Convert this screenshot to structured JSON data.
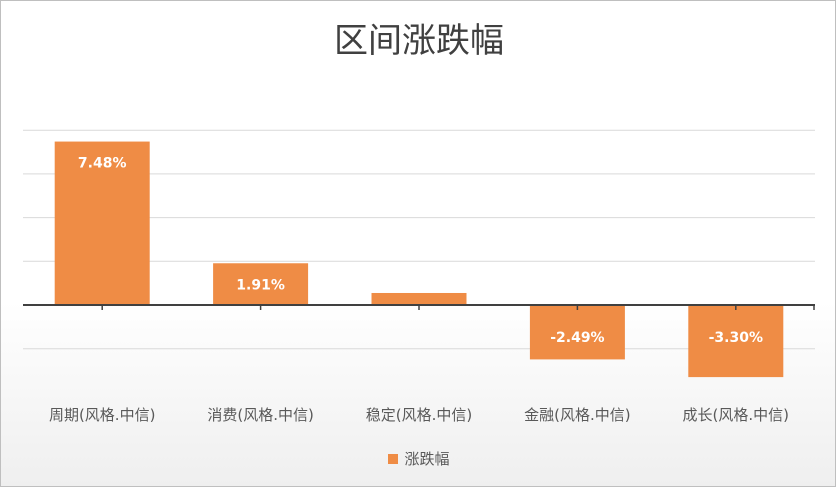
{
  "chart_data": {
    "type": "bar",
    "title": "区间涨跌幅",
    "categories": [
      "周期(风格.中信)",
      "消费(风格.中信)",
      "稳定(风格.中信)",
      "金融(风格.中信)",
      "成长(风格.中信)"
    ],
    "series": [
      {
        "name": "涨跌幅",
        "values": [
          7.48,
          1.91,
          0.55,
          -2.49,
          -3.3
        ],
        "data_labels": [
          "7.48%",
          "1.91%",
          "",
          "-2.49%",
          "-3.30%"
        ]
      }
    ],
    "ylim": [
      -2,
      5
    ],
    "unit": "%",
    "grid": true,
    "legend_position": "bottom",
    "bar_color": "#ef8c45",
    "label_color": "#ffffff"
  }
}
